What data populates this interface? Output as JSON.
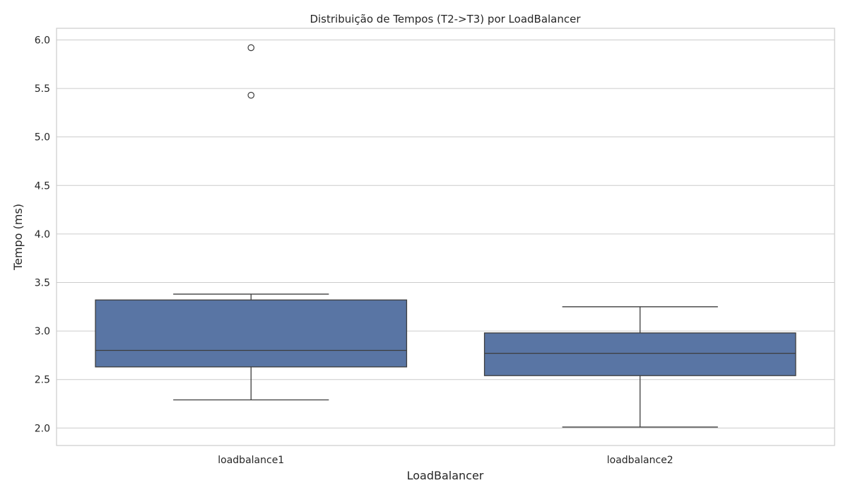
{
  "chart_data": {
    "type": "box",
    "title": "Distribuição de Tempos (T2->T3) por LoadBalancer",
    "xlabel": "LoadBalancer",
    "ylabel": "Tempo (ms)",
    "ylim": [
      1.82,
      6.12
    ],
    "yticks": [
      "2.0",
      "2.5",
      "3.0",
      "3.5",
      "4.0",
      "4.5",
      "5.0",
      "5.5",
      "6.0"
    ],
    "grid": true,
    "box_color": "#5975a4",
    "line_color": "#3d3d3d",
    "categories": [
      "loadbalance1",
      "loadbalance2"
    ],
    "boxes": [
      {
        "name": "loadbalance1",
        "whisker_low": 2.29,
        "q1": 2.63,
        "median": 2.8,
        "q3": 3.32,
        "whisker_high": 3.38,
        "outliers": [
          5.43,
          5.92
        ]
      },
      {
        "name": "loadbalance2",
        "whisker_low": 2.01,
        "q1": 2.54,
        "median": 2.77,
        "q3": 2.98,
        "whisker_high": 3.25,
        "outliers": []
      }
    ]
  }
}
